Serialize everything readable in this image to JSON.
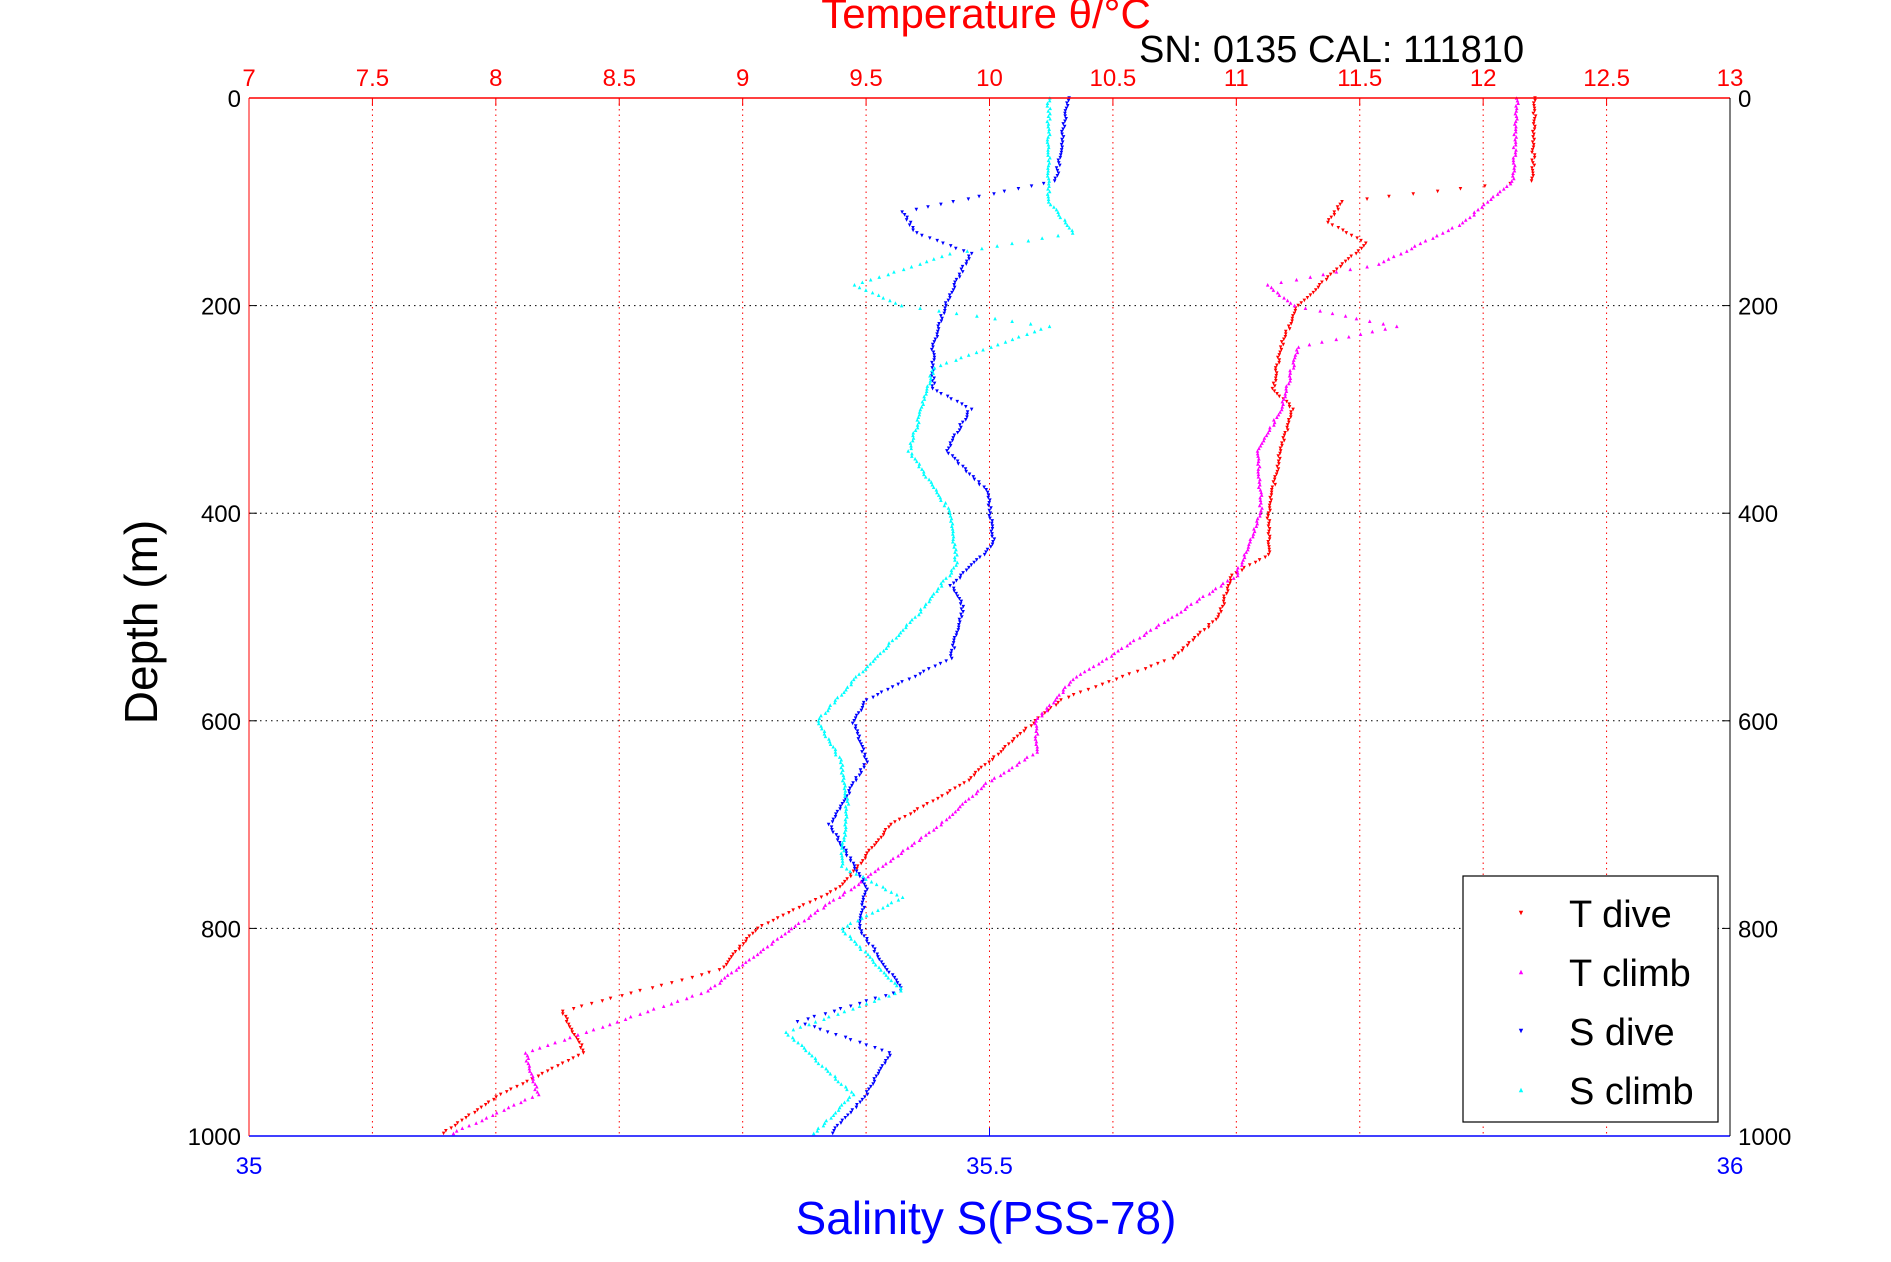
{
  "chart_data": {
    "type": "scatter",
    "title": "Temperature θ/°C",
    "subtitle": "SN: 0135  CAL: 111810",
    "xlabel": "Salinity S(PSS-78)",
    "ylabel": "Depth (m)",
    "x_top": {
      "label": "Temperature θ/°C",
      "range": [
        7,
        13
      ],
      "ticks": [
        "7",
        "7.5",
        "8",
        "8.5",
        "9",
        "9.5",
        "10",
        "10.5",
        "11",
        "11.5",
        "12",
        "12.5",
        "13"
      ],
      "color": "#ff0000"
    },
    "x_bottom": {
      "label": "Salinity S(PSS-78)",
      "range": [
        35,
        36
      ],
      "ticks": [
        "35",
        "35.5",
        "36"
      ],
      "color": "#0000ff"
    },
    "y": {
      "range": [
        0,
        1000
      ],
      "reversed": true,
      "ticks": [
        "0",
        "200",
        "400",
        "600",
        "800",
        "1000"
      ]
    },
    "grid": true,
    "legend": {
      "placement": "bottom-right",
      "entries": [
        "T dive",
        "T climb",
        "S dive",
        "S climb"
      ]
    },
    "series": [
      {
        "name": "T dive",
        "axis": "temperature",
        "color": "#ff0000",
        "marker": "triangle-down",
        "points": [
          [
            12.21,
            0
          ],
          [
            12.2,
            80
          ],
          [
            11.43,
            100
          ],
          [
            11.37,
            120
          ],
          [
            11.53,
            140
          ],
          [
            11.43,
            160
          ],
          [
            11.25,
            200
          ],
          [
            11.18,
            240
          ],
          [
            11.15,
            280
          ],
          [
            11.23,
            300
          ],
          [
            11.18,
            340
          ],
          [
            11.13,
            400
          ],
          [
            11.13,
            440
          ],
          [
            10.98,
            460
          ],
          [
            10.93,
            500
          ],
          [
            10.74,
            540
          ],
          [
            10.29,
            580
          ],
          [
            10.09,
            620
          ],
          [
            9.9,
            660
          ],
          [
            9.6,
            700
          ],
          [
            9.4,
            760
          ],
          [
            9.06,
            800
          ],
          [
            8.91,
            840
          ],
          [
            8.27,
            880
          ],
          [
            8.36,
            920
          ],
          [
            8.02,
            960
          ],
          [
            7.77,
            1000
          ]
        ]
      },
      {
        "name": "T climb",
        "axis": "temperature",
        "color": "#ff00ff",
        "marker": "triangle-up",
        "points": [
          [
            12.14,
            0
          ],
          [
            12.12,
            80
          ],
          [
            11.92,
            120
          ],
          [
            11.58,
            160
          ],
          [
            11.13,
            180
          ],
          [
            11.23,
            200
          ],
          [
            11.65,
            220
          ],
          [
            11.25,
            240
          ],
          [
            11.18,
            300
          ],
          [
            11.09,
            340
          ],
          [
            11.1,
            400
          ],
          [
            11.0,
            460
          ],
          [
            10.74,
            500
          ],
          [
            10.34,
            560
          ],
          [
            10.19,
            600
          ],
          [
            10.19,
            630
          ],
          [
            9.99,
            660
          ],
          [
            9.8,
            700
          ],
          [
            9.45,
            760
          ],
          [
            9.2,
            800
          ],
          [
            8.86,
            860
          ],
          [
            8.12,
            920
          ],
          [
            8.17,
            960
          ],
          [
            7.8,
            1000
          ]
        ]
      },
      {
        "name": "S dive",
        "axis": "salinity",
        "color": "#0000ff",
        "marker": "triangle-down",
        "points": [
          [
            35.553,
            0
          ],
          [
            35.545,
            80
          ],
          [
            35.442,
            110
          ],
          [
            35.45,
            130
          ],
          [
            35.487,
            150
          ],
          [
            35.47,
            200
          ],
          [
            35.462,
            240
          ],
          [
            35.462,
            280
          ],
          [
            35.487,
            300
          ],
          [
            35.471,
            340
          ],
          [
            35.499,
            380
          ],
          [
            35.503,
            430
          ],
          [
            35.474,
            470
          ],
          [
            35.482,
            490
          ],
          [
            35.474,
            540
          ],
          [
            35.417,
            580
          ],
          [
            35.408,
            600
          ],
          [
            35.417,
            640
          ],
          [
            35.392,
            700
          ],
          [
            35.417,
            760
          ],
          [
            35.412,
            800
          ],
          [
            35.441,
            860
          ],
          [
            35.371,
            890
          ],
          [
            35.433,
            920
          ],
          [
            35.417,
            960
          ],
          [
            35.392,
            1000
          ]
        ]
      },
      {
        "name": "S climb",
        "axis": "salinity",
        "color": "#00ffff",
        "marker": "triangle-up",
        "points": [
          [
            35.54,
            0
          ],
          [
            35.54,
            100
          ],
          [
            35.557,
            130
          ],
          [
            35.474,
            150
          ],
          [
            35.409,
            180
          ],
          [
            35.441,
            200
          ],
          [
            35.54,
            220
          ],
          [
            35.462,
            260
          ],
          [
            35.446,
            340
          ],
          [
            35.474,
            400
          ],
          [
            35.478,
            450
          ],
          [
            35.45,
            500
          ],
          [
            35.409,
            560
          ],
          [
            35.384,
            600
          ],
          [
            35.4,
            640
          ],
          [
            35.404,
            680
          ],
          [
            35.4,
            740
          ],
          [
            35.441,
            770
          ],
          [
            35.4,
            800
          ],
          [
            35.441,
            860
          ],
          [
            35.363,
            900
          ],
          [
            35.408,
            960
          ],
          [
            35.38,
            1000
          ]
        ]
      }
    ]
  }
}
